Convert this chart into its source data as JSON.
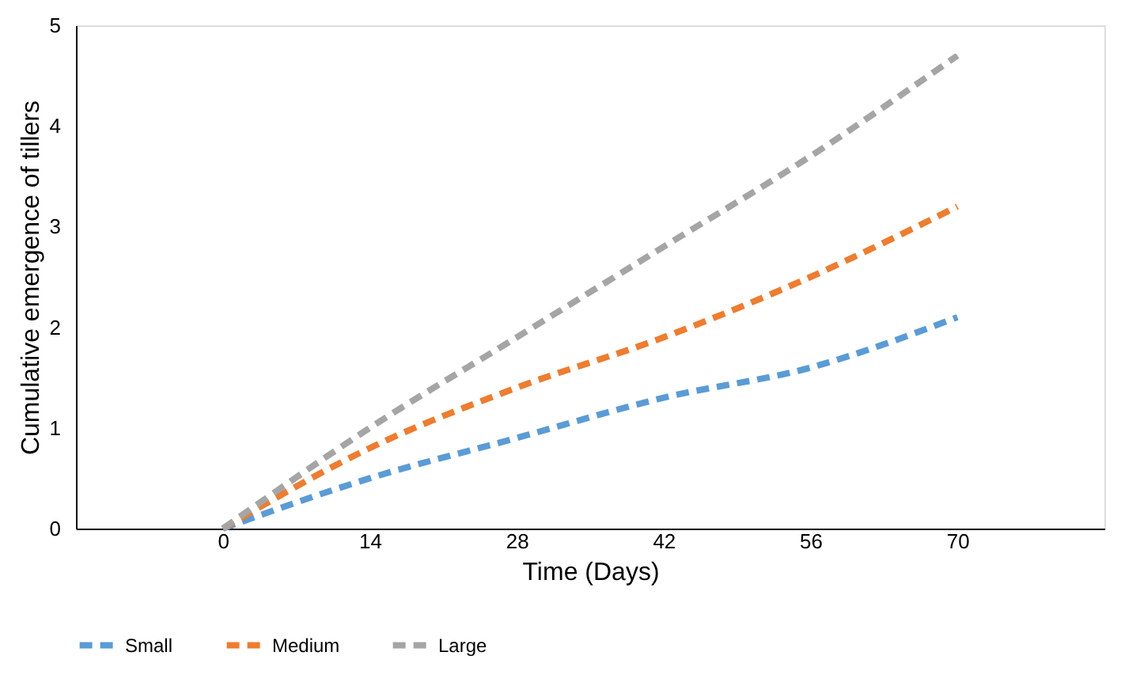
{
  "chart_data": {
    "type": "line",
    "xlabel": "Time (Days)",
    "ylabel": "Cumulative emergence of tillers",
    "categories": [
      "0",
      "14",
      "28",
      "42",
      "56",
      "70"
    ],
    "series": [
      {
        "name": "Small",
        "color": "#5b9bd5",
        "values": [
          0,
          0.5,
          0.9,
          1.3,
          1.6,
          2.1
        ]
      },
      {
        "name": "Medium",
        "color": "#ed7d31",
        "values": [
          0,
          0.8,
          1.4,
          1.9,
          2.5,
          3.2
        ]
      },
      {
        "name": "Large",
        "color": "#a5a5a5",
        "values": [
          0,
          1.0,
          1.9,
          2.8,
          3.7,
          4.7
        ]
      }
    ],
    "ylim": [
      0,
      5
    ],
    "yticks": [
      0,
      1,
      2,
      3,
      4,
      5
    ],
    "grid": false,
    "legend": "bottom",
    "line_style": "dashed",
    "marker": "none"
  }
}
